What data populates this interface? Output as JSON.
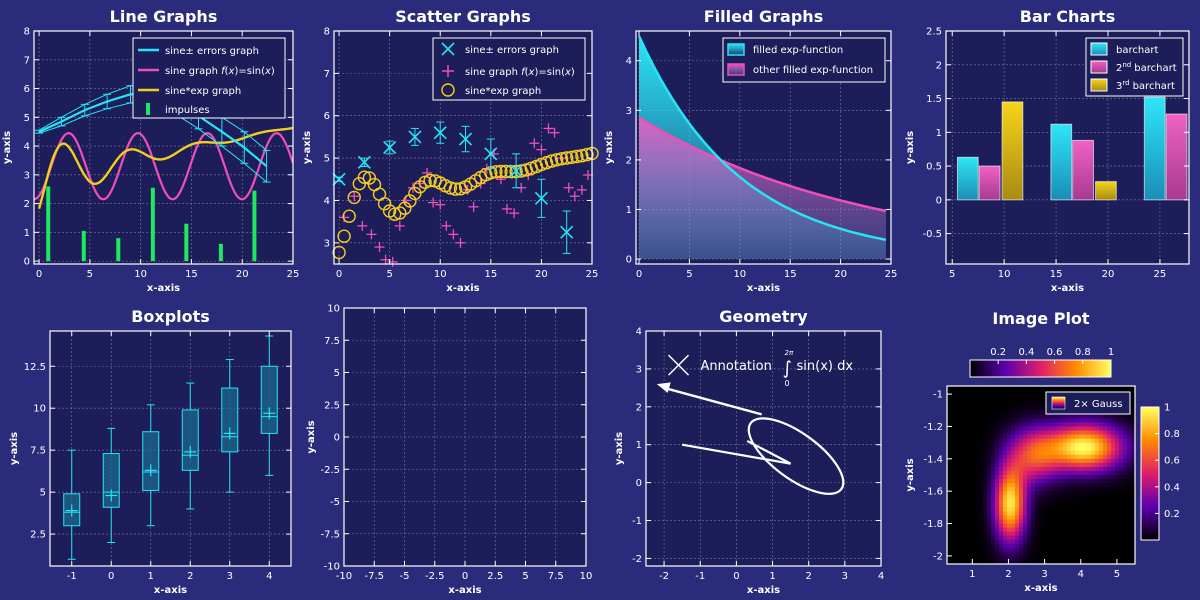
{
  "colors": {
    "background": "#2b2b7c",
    "plot_bg": "#1d1d5a",
    "frame": "#ffffff",
    "grid": "#7a7a9a",
    "cyan": "#27e4f5",
    "magenta": "#ee4fb8",
    "yellow": "#f3cd1f",
    "green": "#1fe860",
    "text": "#ffffff"
  },
  "chart_data": [
    {
      "id": "line",
      "type": "line",
      "title": "Line Graphs",
      "xlabel": "x-axis",
      "ylabel": "y-axis",
      "xlim": [
        -0.5,
        25
      ],
      "ylim": [
        -0.1,
        8
      ],
      "xticks": [
        "0",
        "5",
        "10",
        "15",
        "20",
        "25"
      ],
      "yticks": [
        "0",
        "1",
        "2",
        "3",
        "4",
        "5",
        "6",
        "7",
        "8"
      ],
      "grid": true,
      "legend_position": "top-right",
      "series": [
        {
          "name": "sine± errors graph",
          "kind": "errors",
          "color": "cyan",
          "x": [
            0,
            2.2,
            4.5,
            6.7,
            9,
            11.2,
            13.5,
            15.7,
            18,
            20.2,
            22.4
          ],
          "y": [
            4.5,
            4.85,
            5.25,
            5.55,
            5.8,
            5.8,
            5.5,
            5.05,
            4.5,
            3.95,
            3.3
          ],
          "err": [
            0.05,
            0.15,
            0.2,
            0.25,
            0.3,
            0.35,
            0.4,
            0.45,
            0.5,
            0.55,
            0.55
          ]
        },
        {
          "name": "sine graph f(x)=sin(x)",
          "kind": "line",
          "color": "magenta"
        },
        {
          "name": "sine*exp graph",
          "kind": "line",
          "color": "yellow"
        },
        {
          "name": "impulses",
          "kind": "impulse",
          "color": "green",
          "x": [
            0.9,
            4.4,
            7.8,
            11.2,
            14.5,
            17.9,
            21.2
          ],
          "y": [
            2.6,
            1.05,
            0.8,
            2.55,
            1.3,
            0.6,
            2.45
          ]
        }
      ]
    },
    {
      "id": "scatter",
      "type": "scatter",
      "title": "Scatter Graphs",
      "xlabel": "x-axis",
      "ylabel": "y-axis",
      "xlim": [
        -0.5,
        25
      ],
      "ylim": [
        2.5,
        8
      ],
      "xticks": [
        "0",
        "5",
        "10",
        "15",
        "20",
        "25"
      ],
      "yticks": [
        "3",
        "4",
        "5",
        "6",
        "7",
        "8"
      ],
      "grid": true,
      "legend_position": "top-right",
      "series": [
        {
          "name": "sine± errors graph",
          "marker": "x",
          "color": "cyan",
          "x": [
            0,
            2.5,
            5,
            7.5,
            10,
            12.5,
            15,
            17.5,
            20,
            22.5
          ],
          "y": [
            4.5,
            4.9,
            5.25,
            5.5,
            5.6,
            5.45,
            5.1,
            4.7,
            4.05,
            3.25
          ],
          "err": [
            0.05,
            0.1,
            0.15,
            0.2,
            0.25,
            0.3,
            0.35,
            0.4,
            0.45,
            0.5
          ]
        },
        {
          "name": "sine graph f(x)=sin(x)",
          "marker": "+",
          "color": "magenta",
          "x": [
            0.5,
            1.5,
            2.3,
            3.2,
            4.0,
            4.6,
            5.3,
            6.0,
            6.6,
            7.3,
            8.0,
            8.7,
            9.3,
            10.0,
            10.6,
            11.3,
            12.0,
            12.7,
            13.3,
            14.0,
            14.6,
            15.3,
            16.0,
            16.6,
            17.3,
            18.0,
            18.7,
            19.3,
            20.0,
            20.7,
            21.3,
            22.0,
            22.7,
            23.3,
            24.0,
            24.6
          ],
          "y": [
            3.6,
            4.1,
            3.4,
            3.2,
            2.9,
            2.6,
            2.55,
            3.4,
            4.0,
            4.3,
            4.4,
            4.65,
            3.95,
            3.9,
            3.4,
            3.2,
            3.0,
            4.25,
            3.85,
            4.4,
            4.75,
            5.1,
            4.5,
            3.8,
            3.7,
            4.3,
            4.6,
            5.35,
            5.2,
            5.7,
            5.6,
            5.0,
            4.3,
            4.1,
            4.25,
            4.6
          ]
        },
        {
          "name": "sine*exp graph",
          "marker": "o",
          "color": "yellow"
        }
      ]
    },
    {
      "id": "filled",
      "type": "area",
      "title": "Filled Graphs",
      "xlabel": "x-axis",
      "ylabel": "y-axis",
      "xlim": [
        -0.3,
        25
      ],
      "ylim": [
        -0.1,
        4.6
      ],
      "xticks": [
        "0",
        "5",
        "10",
        "15",
        "20",
        "25"
      ],
      "yticks": [
        "0",
        "1",
        "2",
        "3",
        "4"
      ],
      "grid": true,
      "legend_position": "top-right",
      "series": [
        {
          "name": "filled exp-function",
          "color": "cyan",
          "a": 4.5,
          "k": 0.1
        }
      ],
      "series_b": {
        "name": "other filled exp-function",
        "color": "magenta",
        "a": 2.85,
        "k": 0.044
      }
    },
    {
      "id": "bar",
      "type": "bar",
      "title": "Bar Charts",
      "xlabel": "x-axis",
      "ylabel": "y-axis",
      "xlim": [
        4.4,
        27.8
      ],
      "ylim": [
        -0.95,
        2.5
      ],
      "xticks": [
        "5",
        "10",
        "15",
        "20",
        "25"
      ],
      "yticks": [
        "-0.5",
        "0",
        "0.5",
        "1",
        "1.5",
        "2",
        "2.5"
      ],
      "grid": true,
      "legend_position": "top-right",
      "categories": [
        1,
        2,
        3
      ],
      "series": [
        {
          "name": "barchart",
          "color": "cyan",
          "x": [
            5.5,
            14.5,
            23.5
          ],
          "values": [
            0.63,
            1.12,
            1.52
          ]
        },
        {
          "name": "barchart",
          "sup": "nd",
          "prefix": "2",
          "color": "magenta",
          "x": [
            7.6,
            16.6,
            25.6
          ],
          "values": [
            0.5,
            0.88,
            1.27
          ]
        },
        {
          "name": "barchart",
          "sup": "rd",
          "prefix": "3",
          "color": "yellow",
          "x": [
            9.8,
            18.8,
            27.8
          ],
          "values": [
            1.45,
            0.27,
            -0.8
          ]
        }
      ]
    },
    {
      "id": "box",
      "type": "box",
      "title": "Boxplots",
      "xlabel": "x-axis",
      "ylabel": "y-axis",
      "xlim": [
        -1.55,
        4.55
      ],
      "ylim": [
        0.6,
        14.6
      ],
      "xticks": [
        "-1",
        "0",
        "1",
        "2",
        "3",
        "4"
      ],
      "yticks": [
        "2.5",
        "5",
        "7.5",
        "10",
        "12.5"
      ],
      "grid": true,
      "boxes": [
        {
          "x": -1,
          "min": 1.0,
          "q1": 3.0,
          "median": 3.8,
          "mean": 3.9,
          "q3": 4.9,
          "max": 7.5
        },
        {
          "x": 0,
          "min": 2.0,
          "q1": 4.1,
          "median": 5.0,
          "mean": 4.8,
          "q3": 7.3,
          "max": 8.8
        },
        {
          "x": 1,
          "min": 3.0,
          "q1": 5.1,
          "median": 6.2,
          "mean": 6.3,
          "q3": 8.6,
          "max": 10.2
        },
        {
          "x": 2,
          "min": 4.0,
          "q1": 6.3,
          "median": 7.2,
          "mean": 7.4,
          "q3": 9.9,
          "max": 11.5
        },
        {
          "x": 3,
          "min": 5.0,
          "q1": 7.4,
          "median": 8.3,
          "mean": 8.5,
          "q3": 11.2,
          "max": 12.9
        },
        {
          "x": 4,
          "min": 6.0,
          "q1": 8.5,
          "median": 9.5,
          "mean": 9.7,
          "q3": 12.5,
          "max": 14.3
        }
      ]
    },
    {
      "id": "empty",
      "type": "line",
      "title": "",
      "xlabel": "x-axis",
      "ylabel": "y-axis",
      "xlim": [
        -10,
        10
      ],
      "ylim": [
        -10,
        10
      ],
      "xticks": [
        "-10",
        "-7.5",
        "-5",
        "-2.5",
        "0",
        "2.5",
        "5",
        "7.5",
        "10"
      ],
      "yticks": [
        "-10",
        "-7.5",
        "-5",
        "-2.5",
        "0",
        "2.5",
        "5",
        "7.5",
        "10"
      ],
      "grid": true
    },
    {
      "id": "geometry",
      "type": "diagram",
      "title": "Geometry",
      "xlabel": "x-axis",
      "ylabel": "y-axis",
      "xlim": [
        -2.5,
        4
      ],
      "ylim": [
        -2.2,
        4
      ],
      "xticks": [
        "-2",
        "-1",
        "0",
        "1",
        "2",
        "3",
        "4"
      ],
      "yticks": [
        "-2",
        "-1",
        "0",
        "1",
        "2",
        "3",
        "4"
      ],
      "grid": true,
      "annotation": {
        "text": "Annotation",
        "integral_upper": "2π",
        "integral_lower": "0",
        "integrand": "sin(x) dx",
        "at": [
          -1.6,
          3.1
        ]
      },
      "arrow": {
        "from": [
          0.7,
          1.8
        ],
        "to": [
          -2.2,
          2.6
        ]
      },
      "zigzag": [
        [
          1.5,
          0.5
        ],
        [
          -1.5,
          1.0
        ]
      ],
      "ellipse": {
        "center": [
          1.65,
          0.7
        ],
        "rx": 1.55,
        "ry": 0.6,
        "angle_deg": -36
      }
    },
    {
      "id": "image",
      "type": "heatmap",
      "title": "Image Plot",
      "xlabel": "x-axis",
      "ylabel": "y-axis",
      "xlim": [
        0.3,
        5.5
      ],
      "ylim": [
        -2.05,
        -0.95
      ],
      "xticks": [
        "1",
        "2",
        "3",
        "4",
        "5"
      ],
      "yticks": [
        "-1",
        "-1.2",
        "-1.4",
        "-1.6",
        "-1.8",
        "-2"
      ],
      "legend": "2× Gauss",
      "colorbar_top_ticks": [
        "0.2",
        "0.4",
        "0.6",
        "0.8",
        "1"
      ],
      "colorbar_right_ticks": [
        "1",
        "0.8",
        "0.6",
        "0.4",
        "0.2"
      ],
      "gaussians": [
        {
          "x": 4.1,
          "y": -1.33,
          "sx": 0.72,
          "sy": 0.1,
          "a": 1.0
        },
        {
          "x": 2.05,
          "y": -1.68,
          "sx": 0.3,
          "sy": 0.16,
          "a": 0.95
        },
        {
          "x": 2.7,
          "y": -1.38,
          "sx": 0.5,
          "sy": 0.12,
          "a": 0.55
        }
      ]
    }
  ]
}
